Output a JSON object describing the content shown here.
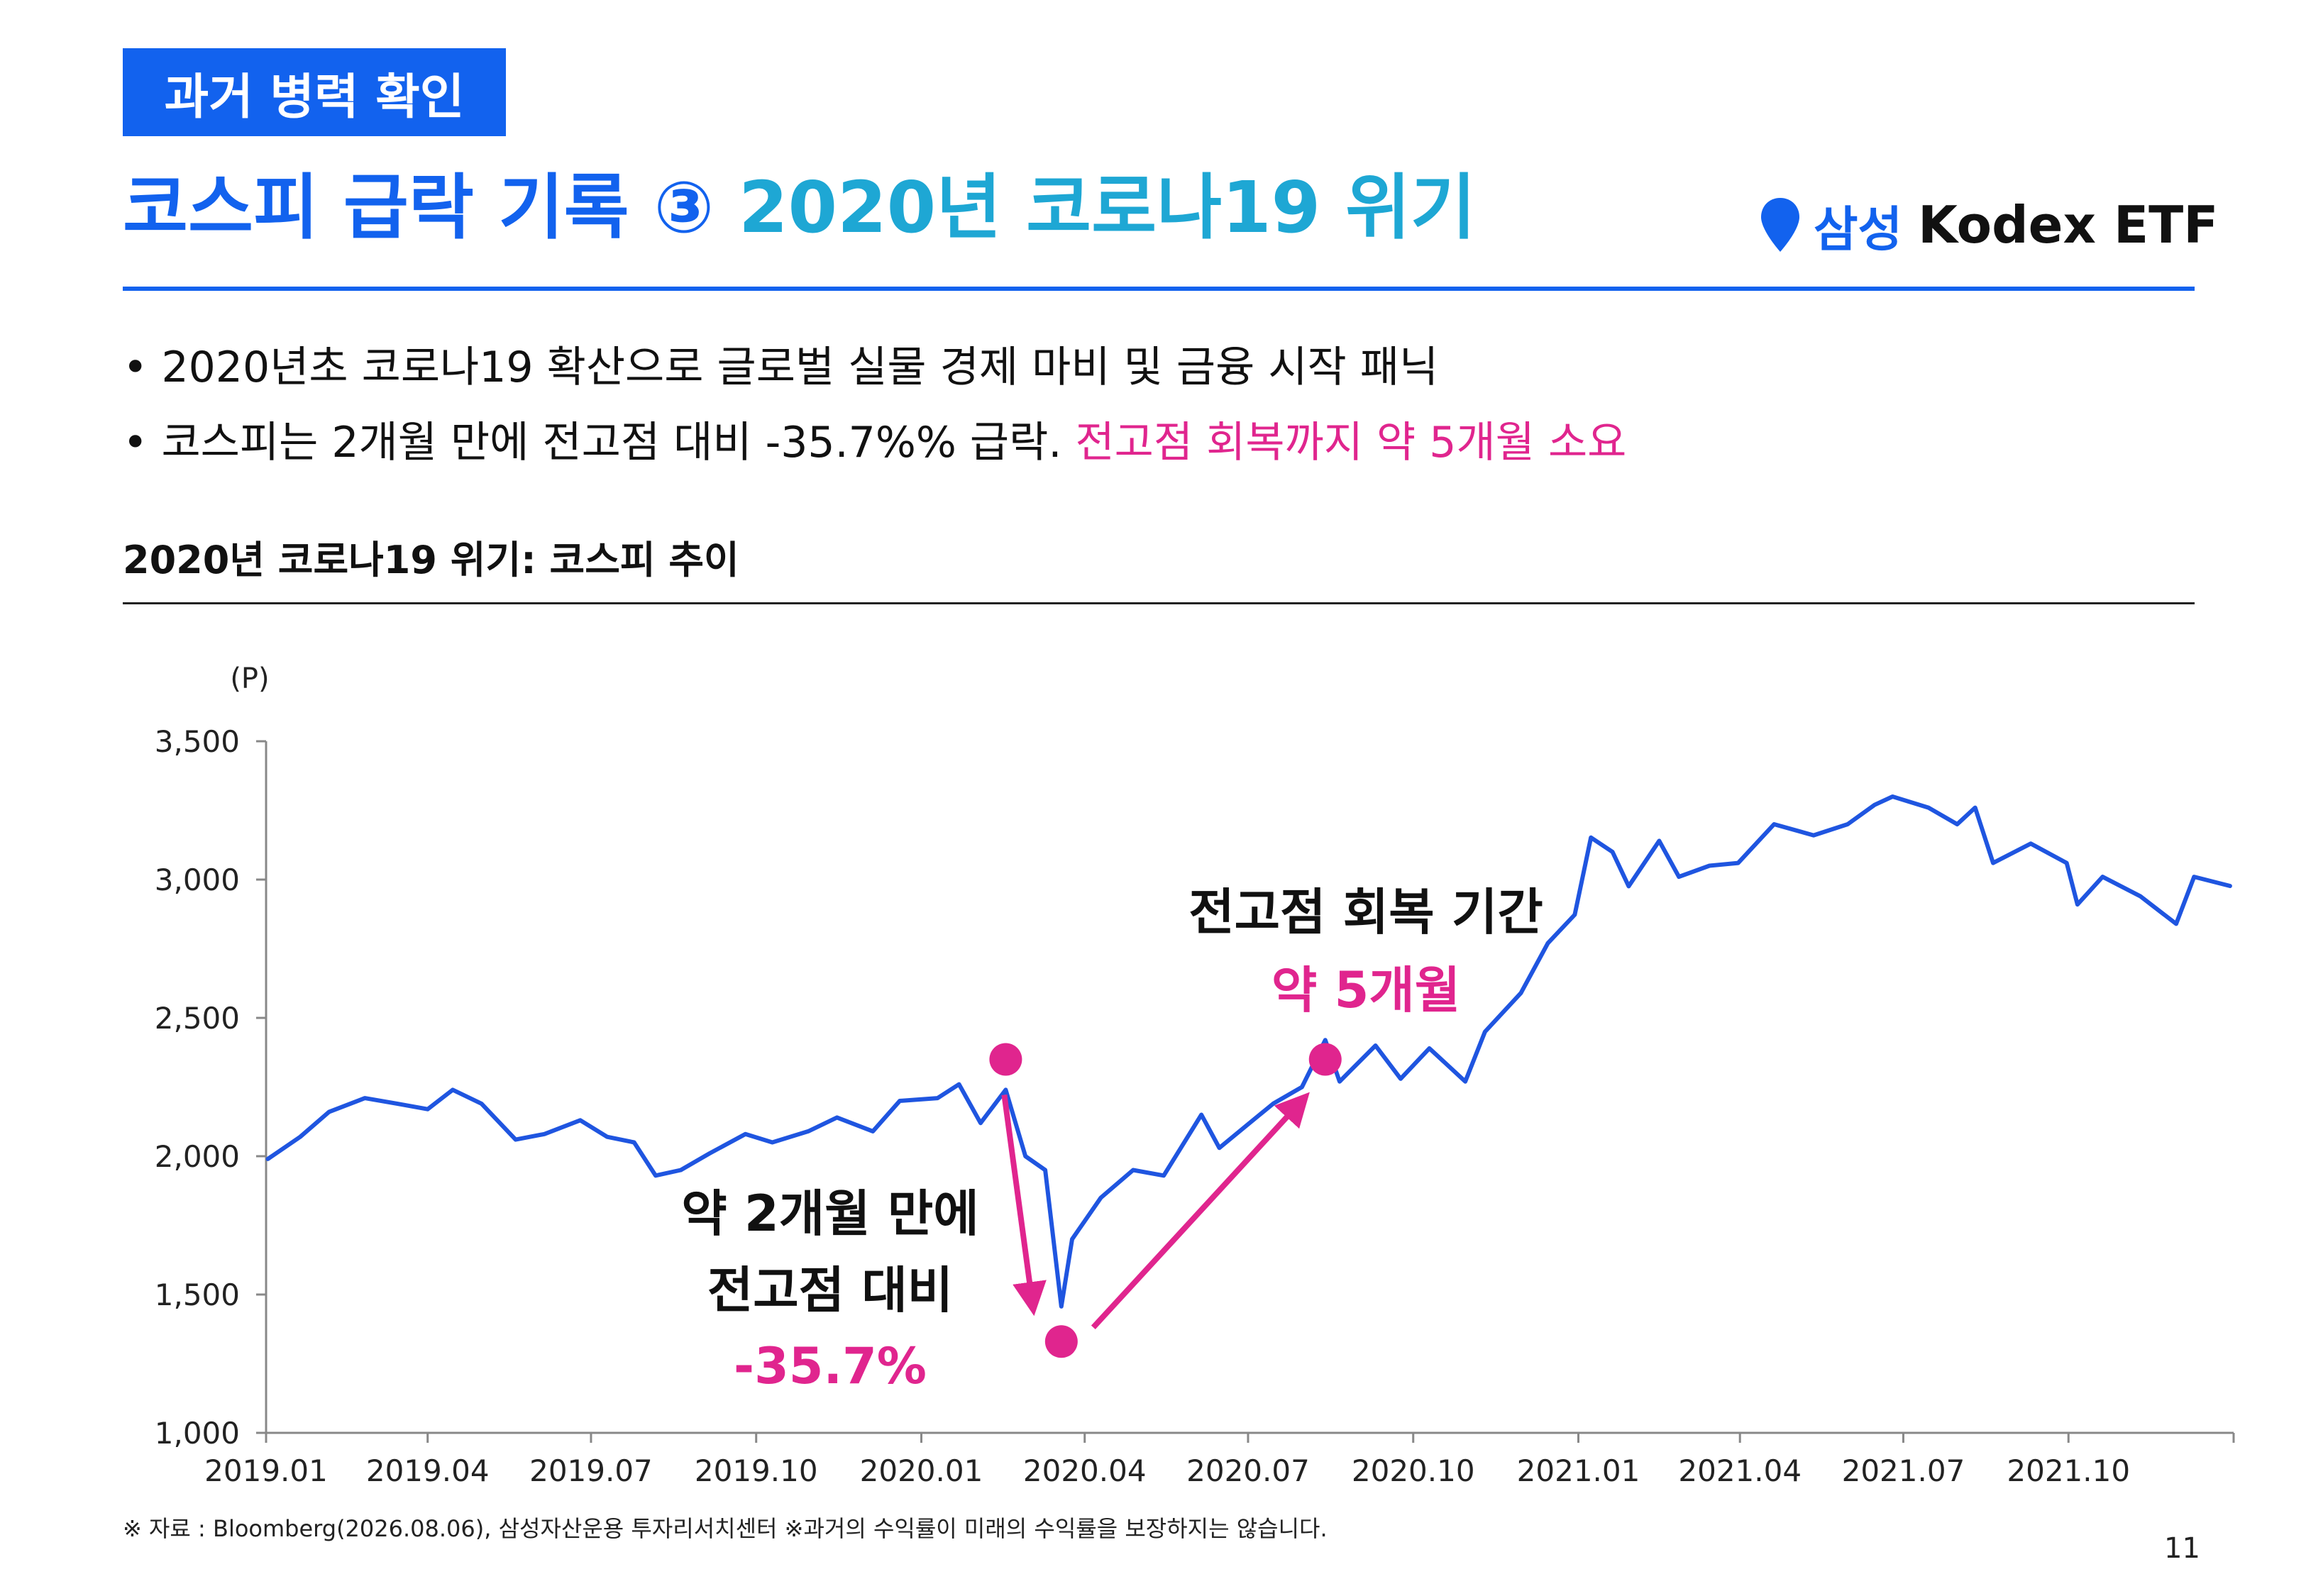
{
  "header": {
    "tag": "과거 병력 확인",
    "title_main": "코스피 급락 기록 ③ ",
    "title_accent": "2020년 코로나19 위기",
    "brand_samsung": "삼성",
    "brand_kodex": "Kodex ETF"
  },
  "bullets": [
    {
      "text": "• 2020년초 코로나19 확산으로 글로벌 실물 경제 마비 및 금융 시작 패닉",
      "highlight": ""
    },
    {
      "text": "• 코스피는 2개월 만에 전고점 대비 -35.7%% 급락. ",
      "highlight": "전고점 회복까지 약 5개월 소요"
    }
  ],
  "chart_title": "2020년 코로나19 위기: 코스피 추이",
  "colors": {
    "brand_blue": "#1262ee",
    "accent_cyan": "#1ea7d4",
    "pink": "#e0258e",
    "line": "#1f55e0"
  },
  "chart_data": {
    "type": "line",
    "unit_label": "(P)",
    "ylim": [
      1000,
      3500
    ],
    "yticks": [
      1000,
      1500,
      2000,
      2500,
      3000,
      3500
    ],
    "ytick_labels": [
      "1,000",
      "1,500",
      "2,000",
      "2,500",
      "3,000",
      "3,500"
    ],
    "xlim": [
      "2019-01",
      "2021-12"
    ],
    "xtick_labels": [
      "2019.01",
      "2019.04",
      "2019.07",
      "2019.10",
      "2020.01",
      "2020.04",
      "2020.07",
      "2020.10",
      "2021.01",
      "2021.04",
      "2021.07",
      "2021.10"
    ],
    "series": [
      {
        "name": "",
        "points": [
          [
            "2019-01-02",
            1990
          ],
          [
            "2019-01-20",
            2070
          ],
          [
            "2019-02-05",
            2160
          ],
          [
            "2019-02-25",
            2210
          ],
          [
            "2019-03-15",
            2190
          ],
          [
            "2019-04-01",
            2170
          ],
          [
            "2019-04-15",
            2240
          ],
          [
            "2019-05-01",
            2190
          ],
          [
            "2019-05-20",
            2060
          ],
          [
            "2019-06-05",
            2080
          ],
          [
            "2019-06-25",
            2130
          ],
          [
            "2019-07-10",
            2070
          ],
          [
            "2019-07-25",
            2050
          ],
          [
            "2019-08-06",
            1930
          ],
          [
            "2019-08-20",
            1950
          ],
          [
            "2019-09-05",
            2010
          ],
          [
            "2019-09-25",
            2080
          ],
          [
            "2019-10-10",
            2050
          ],
          [
            "2019-10-30",
            2090
          ],
          [
            "2019-11-15",
            2140
          ],
          [
            "2019-12-05",
            2090
          ],
          [
            "2019-12-20",
            2200
          ],
          [
            "2020-01-10",
            2210
          ],
          [
            "2020-01-22",
            2260
          ],
          [
            "2020-02-03",
            2120
          ],
          [
            "2020-02-17",
            2240
          ],
          [
            "2020-02-28",
            2000
          ],
          [
            "2020-03-10",
            1950
          ],
          [
            "2020-03-19",
            1457
          ],
          [
            "2020-03-25",
            1700
          ],
          [
            "2020-04-10",
            1850
          ],
          [
            "2020-04-28",
            1950
          ],
          [
            "2020-05-15",
            1930
          ],
          [
            "2020-06-05",
            2150
          ],
          [
            "2020-06-15",
            2030
          ],
          [
            "2020-06-30",
            2110
          ],
          [
            "2020-07-15",
            2190
          ],
          [
            "2020-07-31",
            2250
          ],
          [
            "2020-08-13",
            2420
          ],
          [
            "2020-08-21",
            2270
          ],
          [
            "2020-09-10",
            2400
          ],
          [
            "2020-09-24",
            2280
          ],
          [
            "2020-10-10",
            2390
          ],
          [
            "2020-10-30",
            2270
          ],
          [
            "2020-11-10",
            2450
          ],
          [
            "2020-11-30",
            2590
          ],
          [
            "2020-12-15",
            2770
          ],
          [
            "2020-12-30",
            2873
          ],
          [
            "2021-01-08",
            3152
          ],
          [
            "2021-01-20",
            3100
          ],
          [
            "2021-01-29",
            2976
          ],
          [
            "2021-02-15",
            3140
          ],
          [
            "2021-02-26",
            3010
          ],
          [
            "2021-03-15",
            3050
          ],
          [
            "2021-03-31",
            3060
          ],
          [
            "2021-04-20",
            3200
          ],
          [
            "2021-05-12",
            3160
          ],
          [
            "2021-05-31",
            3200
          ],
          [
            "2021-06-15",
            3270
          ],
          [
            "2021-06-25",
            3300
          ],
          [
            "2021-07-15",
            3260
          ],
          [
            "2021-07-31",
            3200
          ],
          [
            "2021-08-10",
            3260
          ],
          [
            "2021-08-20",
            3060
          ],
          [
            "2021-09-10",
            3130
          ],
          [
            "2021-09-30",
            3060
          ],
          [
            "2021-10-06",
            2910
          ],
          [
            "2021-10-20",
            3010
          ],
          [
            "2021-11-10",
            2940
          ],
          [
            "2021-11-30",
            2840
          ],
          [
            "2021-12-10",
            3010
          ],
          [
            "2021-12-30",
            2977
          ]
        ]
      }
    ],
    "markers": [
      {
        "date": "2020-02-17",
        "value": 2350
      },
      {
        "date": "2020-03-19",
        "value": 1330
      },
      {
        "date": "2020-08-13",
        "value": 2350
      }
    ],
    "annotations": {
      "drop_line1": "약 2개월 만에",
      "drop_line2": "전고점 대비",
      "drop_value": "-35.7%",
      "recovery_line1": "전고점 회복 기간",
      "recovery_value": "약 5개월"
    }
  },
  "footer": "※ 자료 : Bloomberg(2026.08.06), 삼성자산운용 투자리서치센터 ※과거의 수익률이 미래의 수익률을 보장하지는 않습니다.",
  "page_number": "11"
}
